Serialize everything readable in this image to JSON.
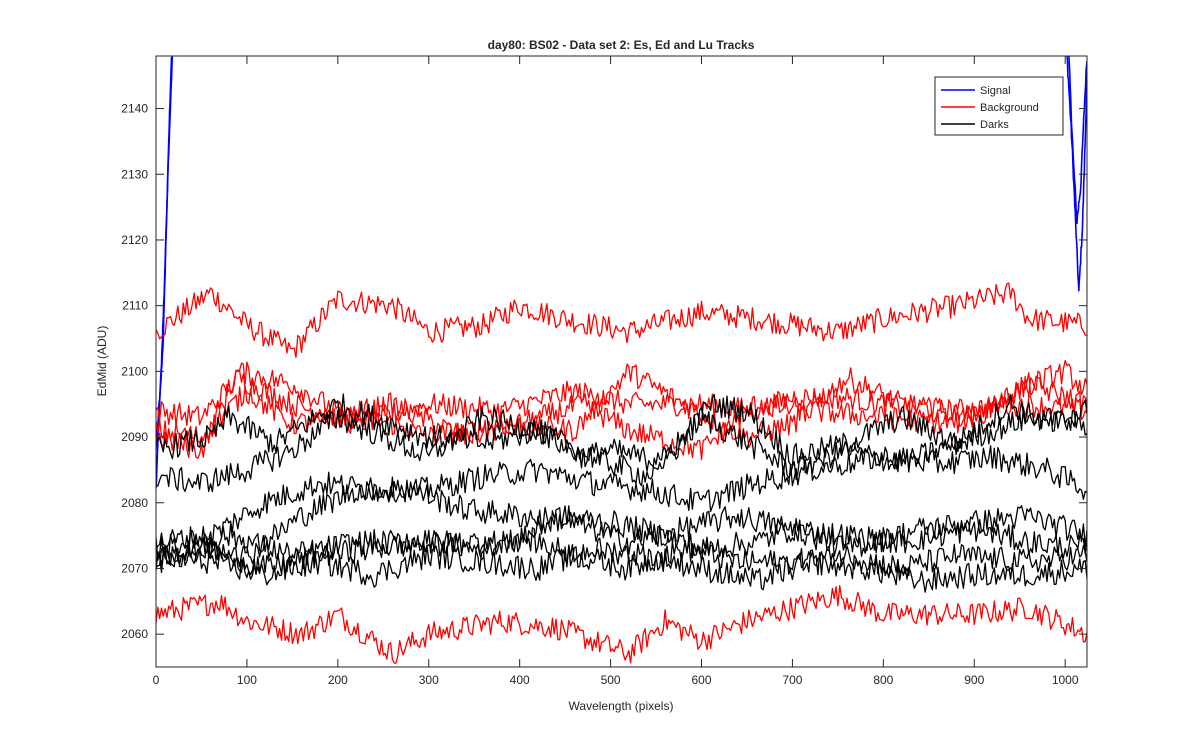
{
  "chart_data": {
    "type": "line",
    "title": "day80: BS02 - Data set 2: Es, Ed and Lu Tracks",
    "xlabel": "Wavelength (pixels)",
    "ylabel": "EdMid (ADU)",
    "xlim": [
      0,
      1024
    ],
    "ylim": [
      2055,
      2148
    ],
    "xticks": [
      "0",
      "100",
      "200",
      "300",
      "400",
      "500",
      "600",
      "700",
      "800",
      "900",
      "1000"
    ],
    "yticks": [
      "2060",
      "2070",
      "2080",
      "2090",
      "2100",
      "2110",
      "2120",
      "2130",
      "2140"
    ],
    "grid": false,
    "legend_position": "top-right",
    "legend": [
      {
        "name": "Signal",
        "color": "#0000ff"
      },
      {
        "name": "Background",
        "color": "#ff0000"
      },
      {
        "name": "Darks",
        "color": "#000000"
      }
    ],
    "series": [
      {
        "name": "Signal",
        "color": "#0000ff",
        "noise": 0.6,
        "points": [
          [
            0,
            2082
          ],
          [
            4,
            2095
          ],
          [
            8,
            2105
          ],
          [
            11,
            2120
          ],
          [
            14,
            2135
          ],
          [
            17,
            2148
          ]
        ]
      },
      {
        "name": "Signal",
        "color": "#0000ff",
        "noise": 0.6,
        "points": [
          [
            0,
            2088
          ],
          [
            5,
            2098
          ],
          [
            9,
            2112
          ],
          [
            13,
            2130
          ],
          [
            18,
            2148
          ]
        ]
      },
      {
        "name": "Signal",
        "color": "#0000ff",
        "noise": 0.8,
        "points": [
          [
            1002,
            2148
          ],
          [
            1007,
            2136
          ],
          [
            1011,
            2124
          ],
          [
            1015,
            2112
          ],
          [
            1019,
            2122
          ],
          [
            1022,
            2135
          ],
          [
            1024,
            2145
          ]
        ]
      },
      {
        "name": "Signal",
        "color": "#0000ff",
        "noise": 0.8,
        "points": [
          [
            1004,
            2148
          ],
          [
            1009,
            2132
          ],
          [
            1013,
            2123
          ],
          [
            1017,
            2128
          ],
          [
            1021,
            2140
          ],
          [
            1024,
            2148
          ]
        ]
      },
      {
        "name": "Background",
        "color": "#ff0000",
        "noise": 1.8,
        "points": [
          [
            0,
            2106
          ],
          [
            60,
            2112
          ],
          [
            100,
            2107
          ],
          [
            150,
            2103
          ],
          [
            200,
            2111
          ],
          [
            260,
            2110
          ],
          [
            300,
            2106
          ],
          [
            360,
            2107
          ],
          [
            400,
            2110
          ],
          [
            450,
            2108
          ],
          [
            520,
            2106
          ],
          [
            600,
            2109
          ],
          [
            660,
            2108
          ],
          [
            750,
            2106
          ],
          [
            800,
            2108
          ],
          [
            880,
            2110
          ],
          [
            940,
            2112
          ],
          [
            960,
            2108
          ],
          [
            1024,
            2107
          ]
        ]
      },
      {
        "name": "Background",
        "color": "#ff0000",
        "noise": 1.8,
        "points": [
          [
            0,
            2063
          ],
          [
            70,
            2065
          ],
          [
            100,
            2062
          ],
          [
            160,
            2060
          ],
          [
            200,
            2063
          ],
          [
            260,
            2057
          ],
          [
            300,
            2060
          ],
          [
            380,
            2062
          ],
          [
            440,
            2061
          ],
          [
            520,
            2057
          ],
          [
            560,
            2062
          ],
          [
            600,
            2059
          ],
          [
            650,
            2062
          ],
          [
            750,
            2066
          ],
          [
            800,
            2063
          ],
          [
            900,
            2063
          ],
          [
            960,
            2064
          ],
          [
            1024,
            2060
          ]
        ]
      },
      {
        "name": "Background",
        "color": "#ff0000",
        "noise": 1.8,
        "points": [
          [
            0,
            2094
          ],
          [
            50,
            2093
          ],
          [
            90,
            2099
          ],
          [
            150,
            2095
          ],
          [
            220,
            2092
          ],
          [
            300,
            2095
          ],
          [
            380,
            2094
          ],
          [
            460,
            2097
          ],
          [
            520,
            2095
          ],
          [
            600,
            2095
          ],
          [
            660,
            2094
          ],
          [
            700,
            2096
          ],
          [
            760,
            2096
          ],
          [
            800,
            2095
          ],
          [
            880,
            2094
          ],
          [
            950,
            2095
          ],
          [
            1024,
            2094
          ]
        ]
      },
      {
        "name": "Background",
        "color": "#ff0000",
        "noise": 1.8,
        "points": [
          [
            0,
            2090
          ],
          [
            50,
            2088
          ],
          [
            90,
            2100
          ],
          [
            150,
            2098
          ],
          [
            210,
            2093
          ],
          [
            260,
            2092
          ],
          [
            300,
            2090
          ],
          [
            380,
            2092
          ],
          [
            460,
            2091
          ],
          [
            520,
            2100
          ],
          [
            580,
            2095
          ],
          [
            650,
            2090
          ],
          [
            700,
            2092
          ],
          [
            760,
            2099
          ],
          [
            820,
            2095
          ],
          [
            900,
            2093
          ],
          [
            960,
            2098
          ],
          [
            1024,
            2095
          ]
        ]
      },
      {
        "name": "Background",
        "color": "#ff0000",
        "noise": 1.8,
        "points": [
          [
            0,
            2091
          ],
          [
            50,
            2090
          ],
          [
            100,
            2097
          ],
          [
            150,
            2092
          ],
          [
            200,
            2093
          ],
          [
            260,
            2095
          ],
          [
            340,
            2090
          ],
          [
            400,
            2092
          ],
          [
            470,
            2095
          ],
          [
            520,
            2091
          ],
          [
            600,
            2088
          ],
          [
            660,
            2095
          ],
          [
            720,
            2094
          ],
          [
            800,
            2093
          ],
          [
            880,
            2092
          ],
          [
            960,
            2098
          ],
          [
            1000,
            2100
          ],
          [
            1024,
            2097
          ]
        ]
      },
      {
        "name": "Darks",
        "color": "#000000",
        "noise": 1.9,
        "points": [
          [
            0,
            2088
          ],
          [
            60,
            2090
          ],
          [
            80,
            2093
          ],
          [
            130,
            2089
          ],
          [
            200,
            2095
          ],
          [
            260,
            2092
          ],
          [
            300,
            2090
          ],
          [
            360,
            2089
          ],
          [
            420,
            2091
          ],
          [
            470,
            2087
          ],
          [
            500,
            2088
          ],
          [
            560,
            2086
          ],
          [
            610,
            2095
          ],
          [
            650,
            2094
          ],
          [
            700,
            2087
          ],
          [
            760,
            2089
          ],
          [
            820,
            2093
          ],
          [
            880,
            2089
          ],
          [
            940,
            2095
          ],
          [
            980,
            2092
          ],
          [
            1024,
            2094
          ]
        ]
      },
      {
        "name": "Darks",
        "color": "#000000",
        "noise": 1.9,
        "points": [
          [
            0,
            2084
          ],
          [
            50,
            2083
          ],
          [
            100,
            2085
          ],
          [
            150,
            2088
          ],
          [
            200,
            2093
          ],
          [
            250,
            2090
          ],
          [
            300,
            2087
          ],
          [
            360,
            2093
          ],
          [
            420,
            2091
          ],
          [
            480,
            2087
          ],
          [
            540,
            2084
          ],
          [
            600,
            2093
          ],
          [
            640,
            2090
          ],
          [
            700,
            2085
          ],
          [
            760,
            2088
          ],
          [
            820,
            2086
          ],
          [
            900,
            2090
          ],
          [
            960,
            2093
          ],
          [
            1024,
            2092
          ]
        ]
      },
      {
        "name": "Darks",
        "color": "#000000",
        "noise": 1.9,
        "points": [
          [
            0,
            2074
          ],
          [
            60,
            2075
          ],
          [
            120,
            2080
          ],
          [
            180,
            2083
          ],
          [
            240,
            2082
          ],
          [
            300,
            2082
          ],
          [
            360,
            2084
          ],
          [
            420,
            2085
          ],
          [
            480,
            2083
          ],
          [
            540,
            2082
          ],
          [
            600,
            2080
          ],
          [
            660,
            2083
          ],
          [
            720,
            2085
          ],
          [
            800,
            2087
          ],
          [
            860,
            2086
          ],
          [
            920,
            2087
          ],
          [
            980,
            2085
          ],
          [
            1024,
            2082
          ]
        ]
      },
      {
        "name": "Darks",
        "color": "#000000",
        "noise": 1.9,
        "points": [
          [
            0,
            2071
          ],
          [
            50,
            2073
          ],
          [
            100,
            2072
          ],
          [
            160,
            2078
          ],
          [
            220,
            2082
          ],
          [
            280,
            2082
          ],
          [
            340,
            2079
          ],
          [
            400,
            2078
          ],
          [
            460,
            2077
          ],
          [
            520,
            2074
          ],
          [
            580,
            2076
          ],
          [
            640,
            2078
          ],
          [
            700,
            2076
          ],
          [
            760,
            2075
          ],
          [
            820,
            2074
          ],
          [
            900,
            2076
          ],
          [
            960,
            2074
          ],
          [
            1024,
            2073
          ]
        ]
      },
      {
        "name": "Darks",
        "color": "#000000",
        "noise": 1.9,
        "points": [
          [
            0,
            2073
          ],
          [
            80,
            2075
          ],
          [
            150,
            2072
          ],
          [
            220,
            2074
          ],
          [
            280,
            2074
          ],
          [
            340,
            2074
          ],
          [
            400,
            2074
          ],
          [
            440,
            2078
          ],
          [
            500,
            2077
          ],
          [
            560,
            2075
          ],
          [
            600,
            2073
          ],
          [
            660,
            2074
          ],
          [
            700,
            2076
          ],
          [
            760,
            2073
          ],
          [
            840,
            2076
          ],
          [
            900,
            2077
          ],
          [
            960,
            2078
          ],
          [
            1024,
            2075
          ]
        ]
      },
      {
        "name": "Darks",
        "color": "#000000",
        "noise": 1.9,
        "points": [
          [
            0,
            2072
          ],
          [
            60,
            2073
          ],
          [
            120,
            2070
          ],
          [
            180,
            2072
          ],
          [
            240,
            2073
          ],
          [
            300,
            2074
          ],
          [
            360,
            2073
          ],
          [
            400,
            2075
          ],
          [
            460,
            2072
          ],
          [
            520,
            2070
          ],
          [
            580,
            2073
          ],
          [
            640,
            2071
          ],
          [
            700,
            2071
          ],
          [
            760,
            2072
          ],
          [
            820,
            2070
          ],
          [
            880,
            2072
          ],
          [
            960,
            2071
          ],
          [
            1024,
            2072
          ]
        ]
      },
      {
        "name": "Darks",
        "color": "#000000",
        "noise": 1.9,
        "points": [
          [
            0,
            2072
          ],
          [
            60,
            2071
          ],
          [
            120,
            2069
          ],
          [
            180,
            2071
          ],
          [
            240,
            2069
          ],
          [
            300,
            2072
          ],
          [
            360,
            2071
          ],
          [
            420,
            2070
          ],
          [
            480,
            2073
          ],
          [
            540,
            2072
          ],
          [
            600,
            2070
          ],
          [
            660,
            2068
          ],
          [
            720,
            2071
          ],
          [
            780,
            2070
          ],
          [
            840,
            2068
          ],
          [
            900,
            2069
          ],
          [
            960,
            2069
          ],
          [
            1024,
            2070
          ]
        ]
      }
    ]
  }
}
